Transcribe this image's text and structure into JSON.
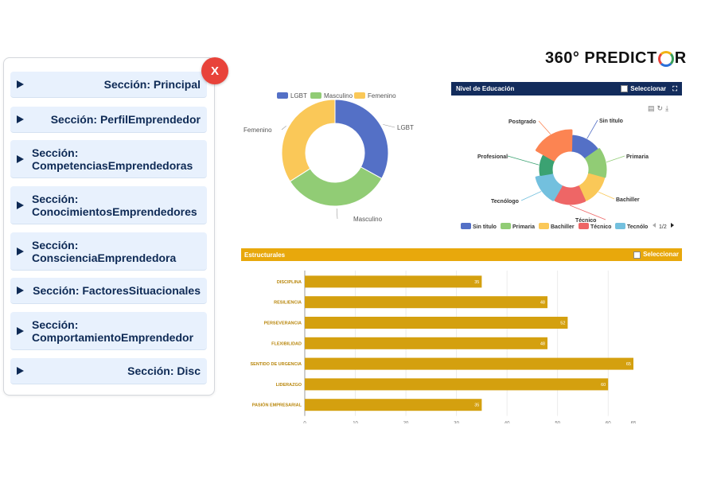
{
  "panel": {
    "close_label": "X",
    "sections": [
      {
        "label": "Sección: Principal"
      },
      {
        "label": "Sección: PerfilEmprendedor"
      },
      {
        "label_line1": "Sección:",
        "label_line2": "CompetenciasEmprendedoras"
      },
      {
        "label_line1": "Sección:",
        "label_line2": "ConocimientosEmprendedores"
      },
      {
        "label_line1": "Sección:",
        "label_line2": "ConscienciaEmprendedora"
      },
      {
        "label": "Sección: FactoresSituacionales"
      },
      {
        "label_line1": "Sección:",
        "label_line2": "ComportamientoEmprendedor"
      },
      {
        "label": "Sección: Disc"
      }
    ]
  },
  "logo": {
    "text_before": "360° PREDICT",
    "text_after": "R"
  },
  "gender_chart": {
    "legend": [
      "LGBT",
      "Masculino",
      "Femenino"
    ],
    "colors": [
      "#5470c6",
      "#91cc75",
      "#fac858"
    ]
  },
  "education": {
    "title": "Nivel de Educación",
    "select_label": "Seleccionar",
    "legend_page": "1/2",
    "legend": [
      "Sin título",
      "Primaria",
      "Bachiller",
      "Técnico",
      "Tecnólo"
    ],
    "slice_labels": [
      "Sin título",
      "Primaria",
      "Bachiller",
      "Técnico",
      "Tecnólogo",
      "Profesional",
      "Postgrado"
    ],
    "colors": [
      "#5470c6",
      "#91cc75",
      "#fac858",
      "#ee6666",
      "#73c0de",
      "#3ba272",
      "#fc8452"
    ]
  },
  "structural": {
    "title": "Estructurales",
    "select_label": "Seleccionar",
    "bar_color": "#d4a00f"
  },
  "chart_data": [
    {
      "type": "pie",
      "categories": [
        "LGBT",
        "Masculino",
        "Femenino"
      ],
      "values": [
        33,
        33,
        34
      ],
      "colors": [
        "#5470c6",
        "#91cc75",
        "#fac858"
      ],
      "legend": "top-center"
    },
    {
      "type": "pie",
      "title": "Nivel de Educación",
      "categories": [
        "Sin título",
        "Primaria",
        "Bachiller",
        "Técnico",
        "Tecnólogo",
        "Profesional",
        "Postgrado"
      ],
      "values": [
        14,
        14,
        14,
        15,
        14,
        11,
        18
      ]
    },
    {
      "type": "bar",
      "orientation": "horizontal",
      "title": "Estructurales",
      "categories": [
        "DISCIPLINA",
        "RESILIENCIA",
        "PERSEVERANCIA",
        "FLEXIBILIDAD",
        "SENTIDO DE URGENCIA",
        "LIDERAZGO",
        "PASIÓN EMPRESARIAL"
      ],
      "values": [
        35,
        48,
        52,
        48,
        65,
        60,
        35
      ],
      "xticks": [
        0,
        10,
        20,
        30,
        40,
        50,
        60,
        65
      ],
      "xlim": [
        0,
        65
      ],
      "grid": true
    }
  ]
}
